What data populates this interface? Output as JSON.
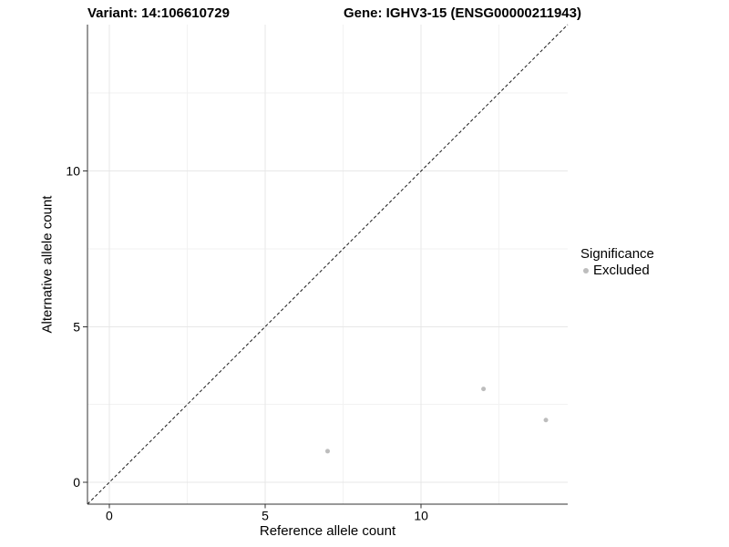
{
  "titles": {
    "variant": "Variant: 14:106610729",
    "gene": "Gene: IGHV3-15 (ENSG00000211943)"
  },
  "chart_data": {
    "type": "scatter",
    "title": "Variant: 14:106610729  Gene: IGHV3-15 (ENSG00000211943)",
    "xlabel": "Reference allele count",
    "ylabel": "Alternative allele count",
    "xlim": [
      -0.7,
      14.7
    ],
    "ylim": [
      -0.7,
      14.7
    ],
    "x_ticks": {
      "major": [
        0,
        5,
        10
      ],
      "minor": [
        2.5,
        7.5,
        12.5
      ]
    },
    "y_ticks": {
      "major": [
        0,
        5,
        10
      ],
      "minor": [
        2.5,
        7.5,
        12.5
      ]
    },
    "grid": "on",
    "series": [
      {
        "name": "Excluded",
        "color": "#bdbdbd",
        "points": [
          {
            "x": 7,
            "y": 1
          },
          {
            "x": 12,
            "y": 3
          },
          {
            "x": 14,
            "y": 2
          }
        ]
      }
    ],
    "reference_line": {
      "type": "diagonal-identity",
      "style": "dashed",
      "color": "#1a1a1a"
    },
    "legend": {
      "title": "Significance",
      "position": "right",
      "entries": [
        {
          "label": "Excluded",
          "color": "#bdbdbd"
        }
      ]
    }
  },
  "colors": {
    "background": "#ffffff",
    "point": "#bdbdbd",
    "grid_major": "#e7e7e7",
    "grid_minor": "#f2f2f2",
    "axis_line": "#333333",
    "text": "#000000"
  }
}
